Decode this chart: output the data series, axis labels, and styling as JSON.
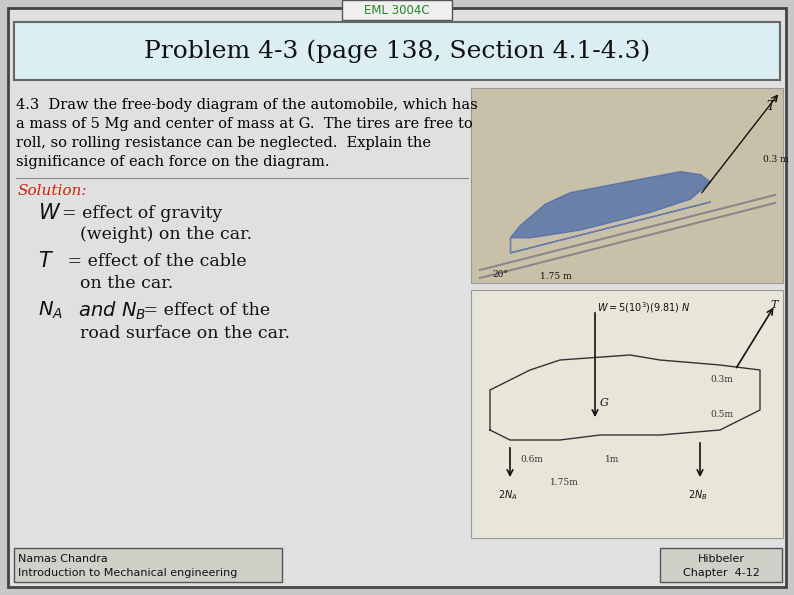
{
  "title_tab": "EML 3004C",
  "main_title": "Problem 4-3 (page 138, Section 4.1-4.3)",
  "body_text_lines": [
    "4.3  Draw the free-body diagram of the automobile, which has",
    "a mass of 5 Mg and center of mass at G.  The tires are free to",
    "roll, so rolling resistance can be neglected.  Explain the",
    "significance of each force on the diagram."
  ],
  "solution_label": "Solution:",
  "footer_left_line1": "Namas Chandra",
  "footer_left_line2": "Introduction to Mechanical engineering",
  "footer_right_line1": "Hibbeler",
  "footer_right_line2": "Chapter  4-12",
  "bg_color": "#c8c8c8",
  "slide_bg": "#e0e0e0",
  "title_bg": "#daeef3",
  "solution_color": "#cc2200",
  "body_text_color": "#000000",
  "img1_bg": "#d8d8c8",
  "img2_bg": "#e8e8e0"
}
